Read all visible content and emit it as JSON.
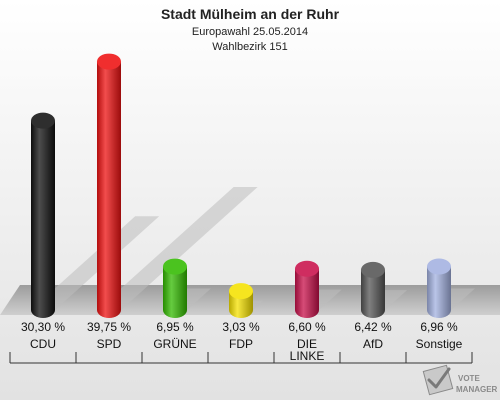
{
  "chart_data": {
    "type": "bar",
    "title": "Stadt Mülheim an der Ruhr",
    "subtitle_lines": [
      "Europawahl 25.05.2014",
      "Wahlbezirk 151"
    ],
    "categories": [
      "CDU",
      "SPD",
      "GRÜNE",
      "FDP",
      "DIE LINKE",
      "AfD",
      "Sonstige"
    ],
    "category_lines": [
      [
        "CDU"
      ],
      [
        "SPD"
      ],
      [
        "GRÜNE"
      ],
      [
        "FDP"
      ],
      [
        "DIE",
        "LINKE"
      ],
      [
        "AfD"
      ],
      [
        "Sonstige"
      ]
    ],
    "values": [
      30.3,
      39.75,
      6.95,
      3.03,
      6.6,
      6.42,
      6.96
    ],
    "value_labels": [
      "30,30 %",
      "39,75 %",
      "6,95 %",
      "3,03 %",
      "6,60 %",
      "6,42 %",
      "6,96 %"
    ],
    "colors": [
      "#111111",
      "#ee1111",
      "#33bb00",
      "#f5e100",
      "#c8104a",
      "#555555",
      "#a3b1e0"
    ],
    "ylim": [
      0,
      40
    ]
  },
  "watermark": {
    "line1": "VOTE",
    "line2": "MANAGER"
  }
}
